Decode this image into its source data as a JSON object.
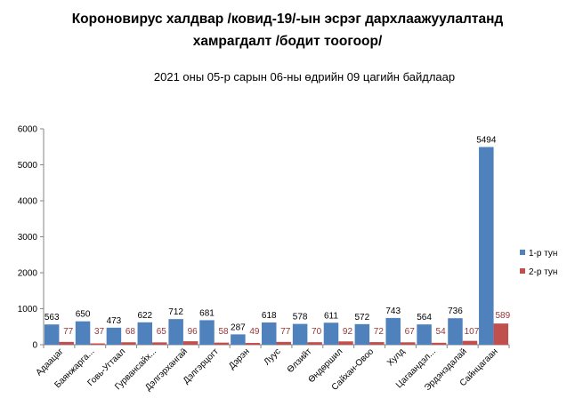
{
  "chart_data": {
    "type": "bar",
    "title_line1": "Короновирус халдвар /ковид-19/-ын эсрэг дархлаажуулалтанд",
    "title_line2": "хамрагдалт /бодит тоогоор/",
    "subtitle": "2021 оны 05-р сарын 06-ны өдрийн 09 цагийн байдлаар",
    "xlabel": "",
    "ylabel": "",
    "ylim": [
      0,
      6000
    ],
    "yticks": [
      0,
      1000,
      2000,
      3000,
      4000,
      5000,
      6000
    ],
    "grid": false,
    "legend_position": "right",
    "categories": [
      "Адаацаг",
      "Баянжаргалан",
      "Говь-Угтаал",
      "Гурвансайхан",
      "Дэлгэрхангай",
      "Дэлгэрцогт",
      "Дэрэн",
      "Луус",
      "Өлзийт",
      "Өндөршил",
      "Сайхан-Овоо",
      "Хулд",
      "Цагаандэлгэр",
      "Эрдэнэдалай",
      "Сайнцагаан"
    ],
    "category_labels": [
      "Адаацаг",
      "Баянжарга...",
      "Говь-Угтаал",
      "Гурвансайх...",
      "Дэлгэрхангай",
      "Дэлгэрцогт",
      "Дэрэн",
      "Луус",
      "Өлзийт",
      "Өндөршил",
      "Сайхан-Овоо",
      "Хулд",
      "Цагаандэл...",
      "Эрдэнэдалай",
      "Сайнцагаан"
    ],
    "series": [
      {
        "name": "1-р тун",
        "color": "#4F81BD",
        "label_color": "#000000",
        "values": [
          563,
          650,
          473,
          622,
          712,
          681,
          287,
          618,
          578,
          611,
          572,
          743,
          564,
          736,
          5494
        ]
      },
      {
        "name": "2-р тун",
        "color": "#C0504D",
        "label_color": "#953735",
        "values": [
          77,
          37,
          68,
          65,
          96,
          58,
          49,
          77,
          70,
          92,
          72,
          67,
          54,
          107,
          589
        ]
      }
    ]
  }
}
